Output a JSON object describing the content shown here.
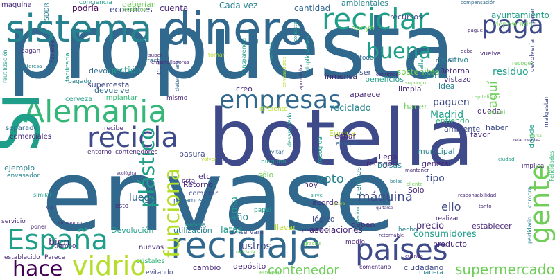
{
  "palette": {
    "dark_purple": "#440154",
    "indigo": "#482878",
    "blue": "#3e4a89",
    "slate_blue": "#31688e",
    "teal_blue": "#26828e",
    "teal": "#1f9e89",
    "green": "#35b779",
    "light_green": "#6ece58",
    "lime": "#b5de2b",
    "yellow": "#dde318"
  },
  "words": [
    "propuesta",
    "envase",
    "botella",
    "sistema",
    "dinero",
    "reciclar",
    "reciclaje",
    "Alemania",
    "España",
    "recicla",
    "vidrio",
    "países",
    "empresas",
    "gente",
    "paga",
    "buena",
    "funciona",
    "plástico",
    "hace",
    "supermercado",
    "contenedor",
    "Sí",
    "máquina",
    "Madrid",
    "aquí",
    "voto",
    "lustros",
    "sostenible",
    "residuo",
    "ayuntamiento",
    "depositado",
    "cuenta",
    "Cada vez",
    "cantidad",
    "ambientales",
    "recursos",
    "apoyo",
    "podría",
    "deberían",
    "ecoembes",
    "conciencia",
    "sostiene",
    "compensación",
    "maquina",
    "SDDR",
    "reutilización",
    "pagan",
    "facilitaría",
    "interesa",
    "devolver",
    "gestión",
    "pagado",
    "supercesta",
    "devuelve",
    "cerveza",
    "intacto",
    "deteriorara",
    "transparencia",
    "bebida",
    "metodo",
    "duplicidades",
    "duda",
    "positivo",
    "Retorna",
    "vistazo",
    "idea",
    "limpia",
    "beneficios",
    "inmensa",
    "ser",
    "así",
    "creo",
    "aparece",
    "hacer",
    "reciclado",
    "paguen",
    "entiendo",
    "ambiente",
    "favor",
    "haber",
    "dónde",
    "queda",
    "malgastar",
    "devolvería",
    "vuelva",
    "capitalismo",
    "municipal",
    "general",
    "llega",
    "bolsas",
    "equipo",
    "diferente",
    "Europa",
    "echar",
    "recogida",
    "desarrollado",
    "evitar",
    "ninguno",
    "sólo",
    "cosa",
    "tipo",
    "luego",
    "ello",
    "año",
    "basura",
    "etc",
    "Retorno",
    "esta",
    "comprar",
    "pagamos",
    "hoy",
    "Solo",
    "recogen",
    "centros",
    "acorde",
    "papel",
    "lógico",
    "precio",
    "consumidores",
    "establecer",
    "producto",
    "asociaciones",
    "deben",
    "llevar",
    "utilización",
    "latas",
    "bien",
    "ejemplo",
    "envasador",
    "similar",
    "separado",
    "comerciales",
    "recibe",
    "entorno",
    "contenedores",
    "implantar",
    "mismo",
    "va",
    "servicio",
    "poner",
    "tiempo",
    "establecido",
    "Parece",
    "nuevas",
    "cristales",
    "evitando",
    "cambio",
    "depósito",
    "Devolución",
    "conservara",
    "ciudadano",
    "manera",
    "comentario",
    "hecho",
    "realizar",
    "mantener",
    "circulación",
    "esto",
    "incremento",
    "retornable",
    "gracias",
    "responsabilidad",
    "partidario",
    "implica",
    "Felicidades",
    "relacionadas",
    "marca",
    "compra",
    "gravo",
    "quitarse",
    "previamente",
    "ayudaría",
    "cadena",
    "ecológica",
    "reciclaria",
    "envasar",
    "medio",
    "consiste",
    "aprovechar",
    "debe",
    "envasadores",
    "adquirir",
    "supongo",
    "cantimos",
    "recoge",
    "calle",
    "que",
    "tomar",
    "super",
    "haciendo",
    "embotelladoras",
    "pague",
    "pasar",
    "cuando",
    "tanto",
    "sirve",
    "volver",
    "bolsa",
    "ciudad",
    "cliente"
  ]
}
